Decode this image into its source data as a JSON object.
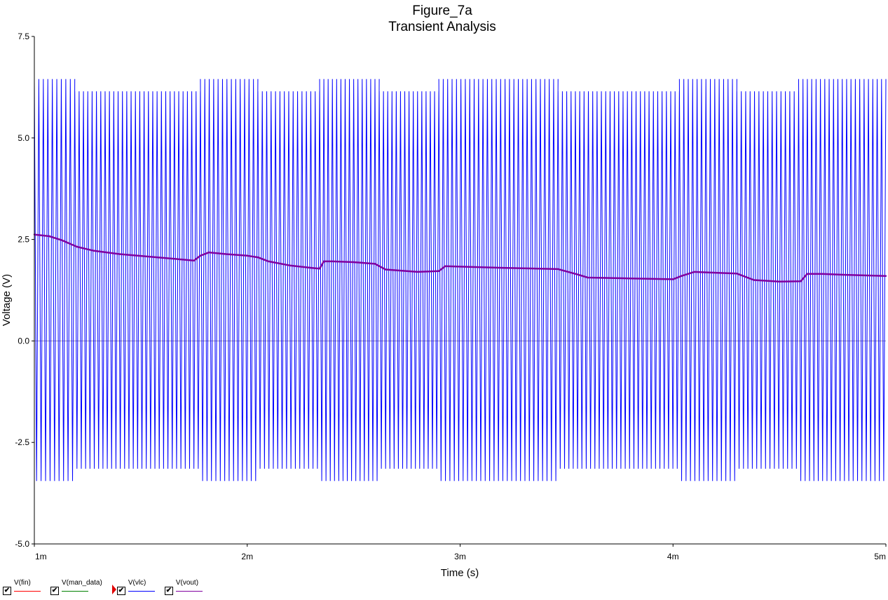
{
  "chart_data": {
    "type": "line",
    "title": "Figure_7a",
    "subtitle": "Transient Analysis",
    "xlabel": "Time (s)",
    "ylabel": "Voltage (V)",
    "xlim": [
      0.001,
      0.005
    ],
    "ylim": [
      -5.0,
      7.5
    ],
    "x_ticks": [
      {
        "value": 0.001,
        "label": "1m"
      },
      {
        "value": 0.002,
        "label": "2m"
      },
      {
        "value": 0.003,
        "label": "3m"
      },
      {
        "value": 0.004,
        "label": "4m"
      },
      {
        "value": 0.005,
        "label": "5m"
      }
    ],
    "y_ticks": [
      {
        "value": 7.5,
        "label": "7.5"
      },
      {
        "value": 5.0,
        "label": "5.0"
      },
      {
        "value": 2.5,
        "label": "2.5"
      },
      {
        "value": 0.0,
        "label": "0.0"
      },
      {
        "value": -2.5,
        "label": "-2.5"
      },
      {
        "value": -5.0,
        "label": "-5.0"
      }
    ],
    "series": [
      {
        "name": "V(fin)",
        "color": "#ff0000",
        "points": []
      },
      {
        "name": "V(man_data)",
        "color": "#008000",
        "points": []
      },
      {
        "name": "V(vlc)",
        "color": "#0000ff",
        "style": "oscillation_envelope",
        "segments": [
          {
            "x0": 0.001,
            "x1": 0.00119,
            "high": 6.45,
            "low": -3.45
          },
          {
            "x0": 0.00119,
            "x1": 0.00178,
            "high": 6.15,
            "low": -3.15
          },
          {
            "x0": 0.00178,
            "x1": 0.00205,
            "high": 6.45,
            "low": -3.45
          },
          {
            "x0": 0.00205,
            "x1": 0.00234,
            "high": 6.15,
            "low": -3.15
          },
          {
            "x0": 0.00234,
            "x1": 0.00262,
            "high": 6.45,
            "low": -3.45
          },
          {
            "x0": 0.00262,
            "x1": 0.0029,
            "high": 6.15,
            "low": -3.15
          },
          {
            "x0": 0.0029,
            "x1": 0.00346,
            "high": 6.45,
            "low": -3.45
          },
          {
            "x0": 0.00346,
            "x1": 0.00403,
            "high": 6.15,
            "low": -3.15
          },
          {
            "x0": 0.00403,
            "x1": 0.0043,
            "high": 6.45,
            "low": -3.45
          },
          {
            "x0": 0.0043,
            "x1": 0.00459,
            "high": 6.15,
            "low": -3.15
          },
          {
            "x0": 0.00459,
            "x1": 0.005,
            "high": 6.45,
            "low": -3.45
          }
        ],
        "cycle_period": 2.05e-05
      },
      {
        "name": "V(vout)",
        "color": "#8000a0",
        "points": [
          [
            0.001,
            2.62
          ],
          [
            0.00107,
            2.58
          ],
          [
            0.00113,
            2.48
          ],
          [
            0.0012,
            2.32
          ],
          [
            0.00128,
            2.22
          ],
          [
            0.0014,
            2.14
          ],
          [
            0.0016,
            2.05
          ],
          [
            0.00175,
            1.98
          ],
          [
            0.00178,
            2.1
          ],
          [
            0.00182,
            2.18
          ],
          [
            0.0019,
            2.14
          ],
          [
            0.002,
            2.1
          ],
          [
            0.00205,
            2.06
          ],
          [
            0.0021,
            1.96
          ],
          [
            0.0022,
            1.86
          ],
          [
            0.0023,
            1.8
          ],
          [
            0.00234,
            1.78
          ],
          [
            0.00236,
            1.96
          ],
          [
            0.0024,
            1.96
          ],
          [
            0.0025,
            1.94
          ],
          [
            0.0026,
            1.9
          ],
          [
            0.00265,
            1.76
          ],
          [
            0.0028,
            1.7
          ],
          [
            0.0029,
            1.72
          ],
          [
            0.00293,
            1.84
          ],
          [
            0.003,
            1.83
          ],
          [
            0.0032,
            1.8
          ],
          [
            0.00346,
            1.77
          ],
          [
            0.00355,
            1.64
          ],
          [
            0.0036,
            1.56
          ],
          [
            0.0038,
            1.54
          ],
          [
            0.004,
            1.52
          ],
          [
            0.00404,
            1.6
          ],
          [
            0.0041,
            1.7
          ],
          [
            0.0042,
            1.68
          ],
          [
            0.0043,
            1.66
          ],
          [
            0.00438,
            1.5
          ],
          [
            0.0045,
            1.46
          ],
          [
            0.0046,
            1.47
          ],
          [
            0.00463,
            1.65
          ],
          [
            0.0047,
            1.65
          ],
          [
            0.0048,
            1.63
          ],
          [
            0.005,
            1.6
          ]
        ]
      }
    ],
    "grid": false,
    "legend_position": "bottom-left"
  },
  "legend": {
    "items": [
      {
        "label": "V(fin)",
        "color": "#ff0000",
        "checked": true,
        "marker": false
      },
      {
        "label": "V(man_data)",
        "color": "#008000",
        "checked": true,
        "marker": false
      },
      {
        "label": "V(vlc)",
        "color": "#0000ff",
        "checked": true,
        "marker": true
      },
      {
        "label": "V(vout)",
        "color": "#8000a0",
        "checked": true,
        "marker": false
      }
    ],
    "check_glyph": "✔"
  }
}
